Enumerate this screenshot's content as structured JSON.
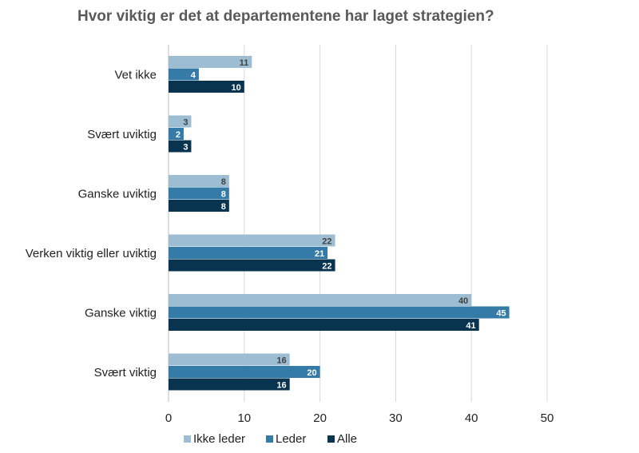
{
  "chart_data": {
    "type": "bar",
    "orientation": "horizontal",
    "title": "Hvor viktig er det at departementene har laget strategien?",
    "categories": [
      "Vet ikke",
      "Svært uviktig",
      "Ganske uviktig",
      "Verken viktig eller uviktig",
      "Ganske viktig",
      "Svært viktig"
    ],
    "series": [
      {
        "name": "Ikke leder",
        "color": "#9dbdd2",
        "label_color": "#404040",
        "values": [
          11,
          3,
          8,
          22,
          40,
          16
        ]
      },
      {
        "name": "Leder",
        "color": "#357ba7",
        "label_color": "#ffffff",
        "values": [
          4,
          2,
          8,
          21,
          45,
          20
        ]
      },
      {
        "name": "Alle",
        "color": "#08344f",
        "label_color": "#ffffff",
        "values": [
          10,
          3,
          8,
          22,
          41,
          16
        ]
      }
    ],
    "xlim": [
      0,
      50
    ],
    "xticks": [
      "0",
      "10",
      "20",
      "30",
      "40",
      "50"
    ],
    "grid": true,
    "legend_position": "bottom"
  }
}
